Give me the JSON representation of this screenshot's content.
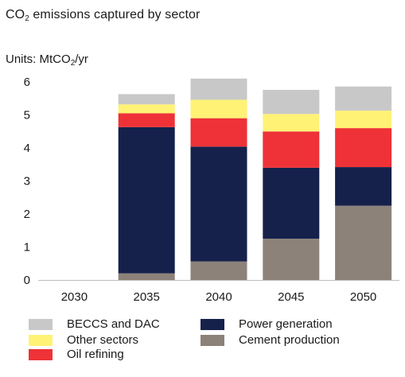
{
  "title": {
    "prefix": "CO",
    "sub": "2",
    "suffix": " emissions captured by sector"
  },
  "units": {
    "prefix": "Units: MtCO",
    "sub": "2",
    "suffix": "/yr"
  },
  "chart_data": {
    "type": "bar",
    "stacked": true,
    "categories": [
      "2030",
      "2035",
      "2040",
      "2045",
      "2050"
    ],
    "ylim": [
      0,
      6
    ],
    "yticks": [
      0,
      1,
      2,
      3,
      4,
      5,
      6
    ],
    "grid": false,
    "legend_position": "bottom",
    "series": [
      {
        "name": "Cement production",
        "color": "#8c8279",
        "values": [
          0.0,
          0.2,
          0.56,
          1.25,
          2.25
        ]
      },
      {
        "name": "Power generation",
        "color": "#16214b",
        "values": [
          0.0,
          4.43,
          3.48,
          2.15,
          1.17
        ]
      },
      {
        "name": "Oil refining",
        "color": "#ee3237",
        "values": [
          0.0,
          0.42,
          0.86,
          1.1,
          1.18
        ]
      },
      {
        "name": "Other sectors",
        "color": "#fff275",
        "values": [
          0.0,
          0.27,
          0.56,
          0.53,
          0.53
        ]
      },
      {
        "name": "BECCS and DAC",
        "color": "#c8c8c8",
        "values": [
          0.0,
          0.31,
          0.64,
          0.73,
          0.73
        ]
      }
    ]
  },
  "legend": [
    {
      "label": "BECCS and DAC",
      "color": "#c8c8c8"
    },
    {
      "label": "Other sectors",
      "color": "#fff275"
    },
    {
      "label": "Oil refining",
      "color": "#ee3237"
    },
    {
      "label": "Power generation",
      "color": "#16214b"
    },
    {
      "label": "Cement production",
      "color": "#8c8279"
    }
  ]
}
